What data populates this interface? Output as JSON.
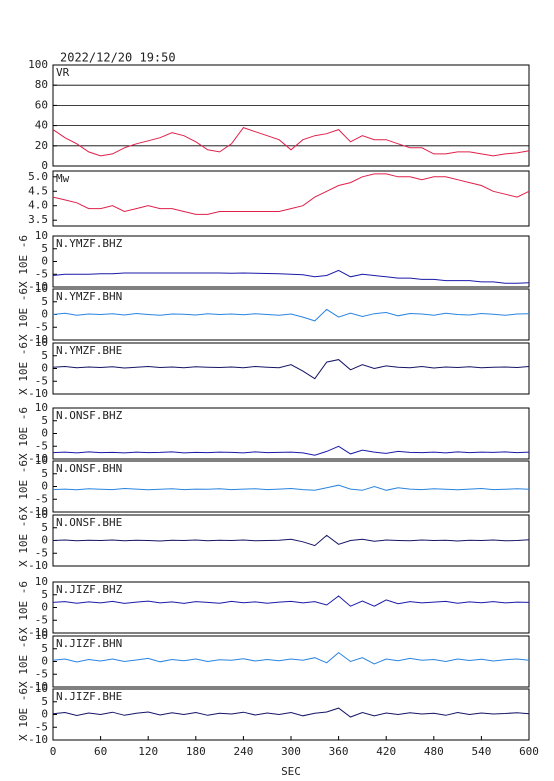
{
  "chart_data": {
    "type": "line",
    "title": "2022/12/20 19:50",
    "xlabel": "SEC",
    "ylabel": "X 10E -6",
    "x": [
      0,
      15,
      30,
      45,
      60,
      75,
      90,
      105,
      120,
      135,
      150,
      165,
      180,
      195,
      210,
      225,
      240,
      255,
      270,
      285,
      300,
      315,
      330,
      345,
      360,
      375,
      390,
      405,
      420,
      435,
      450,
      465,
      480,
      495,
      510,
      525,
      540,
      555,
      570,
      585,
      600
    ],
    "xlim": [
      0,
      600
    ],
    "xticks": [
      0,
      60,
      120,
      180,
      240,
      300,
      360,
      420,
      480,
      540,
      600
    ],
    "series": [
      {
        "name": "VR",
        "color": "#e0204a",
        "ylim": [
          0,
          100
        ],
        "yticks": [
          0,
          20,
          40,
          60,
          80,
          100
        ],
        "grid": true,
        "values": [
          36,
          28,
          22,
          14,
          10,
          12,
          18,
          22,
          25,
          28,
          33,
          30,
          24,
          16,
          14,
          22,
          38,
          34,
          30,
          26,
          16,
          26,
          30,
          32,
          36,
          24,
          30,
          26,
          26,
          22,
          18,
          18,
          12,
          12,
          14,
          14,
          12,
          10,
          12,
          13,
          15
        ]
      },
      {
        "name": "Mw",
        "color": "#e0204a",
        "ylim": [
          3.3,
          5.2
        ],
        "yticks": [
          3.5,
          {
            "value": 4,
            "label": "4.0"
          },
          4.5,
          {
            "value": 5,
            "label": "5.0"
          }
        ],
        "grid": false,
        "values": [
          4.3,
          4.2,
          4.1,
          3.9,
          3.9,
          4.0,
          3.8,
          3.9,
          4.0,
          3.9,
          3.9,
          3.8,
          3.7,
          3.7,
          3.8,
          3.8,
          3.8,
          3.8,
          3.8,
          3.8,
          3.9,
          4.0,
          4.3,
          4.5,
          4.7,
          4.8,
          5.0,
          5.1,
          5.1,
          5.0,
          5.0,
          4.9,
          5.0,
          5.0,
          4.9,
          4.8,
          4.7,
          4.5,
          4.4,
          4.3,
          4.5
        ]
      },
      {
        "name": "N.YMZF.BHZ",
        "color": "#1a1aaa",
        "ylim": [
          -10,
          10
        ],
        "yticks": [
          -10,
          -5,
          0,
          5,
          10
        ],
        "grid": false,
        "values": [
          -5.5,
          -5,
          -5,
          -5,
          -4.8,
          -4.8,
          -4.5,
          -4.5,
          -4.5,
          -4.5,
          -4.5,
          -4.5,
          -4.5,
          -4.5,
          -4.5,
          -4.6,
          -4.5,
          -4.6,
          -4.7,
          -4.8,
          -5,
          -5.2,
          -6,
          -5.5,
          -3.5,
          -6,
          -5,
          -5.5,
          -6,
          -6.5,
          -6.5,
          -7,
          -7,
          -7.5,
          -7.5,
          -7.5,
          -8,
          -8,
          -8.5,
          -8.5,
          -8.3
        ]
      },
      {
        "name": "N.YMZF.BHN",
        "color": "#2a84e0",
        "ylim": [
          -10,
          10
        ],
        "yticks": [
          -10,
          -5,
          0,
          5,
          10
        ],
        "grid": false,
        "values": [
          0,
          0.5,
          -0.3,
          0.2,
          0,
          0.3,
          -0.2,
          0.4,
          0,
          -0.3,
          0.2,
          0.1,
          -0.2,
          0.3,
          0,
          0.2,
          -0.1,
          0.3,
          0,
          -0.3,
          0.2,
          -1,
          -2.5,
          2,
          -1,
          0.5,
          -0.8,
          0.3,
          0.8,
          -0.5,
          0.4,
          0.2,
          -0.3,
          0.5,
          0,
          -0.2,
          0.4,
          0.1,
          -0.3,
          0.2,
          0.3
        ]
      },
      {
        "name": "N.YMZF.BHE",
        "color": "#141466",
        "ylim": [
          -10,
          10
        ],
        "yticks": [
          -10,
          -5,
          0,
          5,
          10
        ],
        "grid": false,
        "values": [
          0.5,
          0.8,
          0.3,
          0.6,
          0.4,
          0.7,
          0.2,
          0.5,
          0.8,
          0.4,
          0.6,
          0.3,
          0.7,
          0.5,
          0.4,
          0.6,
          0.3,
          0.8,
          0.5,
          0.3,
          1.5,
          -1,
          -4,
          2.5,
          3.5,
          -0.5,
          1.5,
          0,
          1,
          0.5,
          0.3,
          0.8,
          0.2,
          0.6,
          0.4,
          0.7,
          0.3,
          0.5,
          0.6,
          0.4,
          0.8
        ]
      },
      {
        "name": "N.ONSF.BHZ",
        "color": "#1a1aaa",
        "ylim": [
          -10,
          10
        ],
        "yticks": [
          -10,
          -5,
          0,
          5,
          10
        ],
        "grid": false,
        "values": [
          -7.5,
          -7.3,
          -7.6,
          -7.2,
          -7.5,
          -7.4,
          -7.6,
          -7.3,
          -7.5,
          -7.4,
          -7.2,
          -7.6,
          -7.4,
          -7.5,
          -7.3,
          -7.4,
          -7.6,
          -7.2,
          -7.5,
          -7.4,
          -7.3,
          -7.6,
          -8.5,
          -7,
          -5,
          -8,
          -6.5,
          -7.3,
          -7.8,
          -7,
          -7.4,
          -7.5,
          -7.3,
          -7.6,
          -7.2,
          -7.5,
          -7.3,
          -7.4,
          -7.2,
          -7.5,
          -7.3
        ]
      },
      {
        "name": "N.ONSF.BHN",
        "color": "#2a84e0",
        "ylim": [
          -10,
          10
        ],
        "yticks": [
          -10,
          -5,
          0,
          5,
          10
        ],
        "grid": false,
        "values": [
          -1.2,
          -1,
          -1.3,
          -0.9,
          -1.1,
          -1.2,
          -0.8,
          -1,
          -1.3,
          -1.1,
          -0.9,
          -1.2,
          -1,
          -1.1,
          -0.9,
          -1.2,
          -1,
          -0.9,
          -1.2,
          -1,
          -0.8,
          -1.2,
          -1.5,
          -0.5,
          0.5,
          -1,
          -1.5,
          0,
          -1.5,
          -0.5,
          -1,
          -1.2,
          -0.9,
          -1.1,
          -1.3,
          -1,
          -0.8,
          -1.2,
          -1.1,
          -0.9,
          -1.1
        ]
      },
      {
        "name": "N.ONSF.BHE",
        "color": "#141466",
        "ylim": [
          -10,
          10
        ],
        "yticks": [
          -10,
          -5,
          0,
          5,
          10
        ],
        "grid": false,
        "values": [
          0,
          0.2,
          -0.1,
          0.1,
          0,
          0.2,
          -0.1,
          0.1,
          0,
          -0.2,
          0.1,
          0,
          0.2,
          -0.1,
          0.1,
          0,
          0.2,
          -0.1,
          0,
          0.1,
          0.5,
          -0.5,
          -2,
          2,
          -1.5,
          0,
          0.5,
          -0.3,
          0.2,
          0,
          -0.1,
          0.2,
          0,
          0.1,
          -0.2,
          0.1,
          0,
          0.2,
          -0.1,
          0,
          0.3
        ]
      },
      {
        "name": "N.JIZF.BHZ",
        "color": "#1a1aaa",
        "ylim": [
          -10,
          10
        ],
        "yticks": [
          -10,
          -5,
          0,
          5,
          10
        ],
        "grid": false,
        "values": [
          2,
          2.3,
          1.7,
          2.2,
          1.8,
          2.4,
          1.6,
          2.1,
          2.5,
          1.8,
          2.2,
          1.6,
          2.3,
          2,
          1.7,
          2.4,
          1.9,
          2.2,
          1.7,
          2.1,
          2.4,
          1.8,
          2.3,
          1,
          4.5,
          0.5,
          2.5,
          0.5,
          3,
          1.5,
          2.3,
          1.8,
          2.1,
          2.4,
          1.7,
          2.2,
          1.9,
          2.3,
          1.8,
          2.1,
          2
        ]
      },
      {
        "name": "N.JIZF.BHN",
        "color": "#2a84e0",
        "ylim": [
          -10,
          10
        ],
        "yticks": [
          -10,
          -5,
          0,
          5,
          10
        ],
        "grid": false,
        "values": [
          0.5,
          1,
          -0.2,
          0.8,
          0.2,
          1,
          0,
          0.6,
          1.2,
          -0.1,
          0.8,
          0.3,
          1,
          0,
          0.7,
          0.5,
          1.1,
          0.2,
          0.8,
          0.3,
          1,
          0.5,
          1.5,
          -0.5,
          3.5,
          0,
          1.5,
          -1,
          1,
          0.3,
          1.2,
          0.5,
          0.8,
          0,
          1,
          0.4,
          0.9,
          0.2,
          0.7,
          1,
          0.5
        ]
      },
      {
        "name": "N.JIZF.BHE",
        "color": "#141466",
        "ylim": [
          -10,
          10
        ],
        "yticks": [
          -10,
          -5,
          0,
          5,
          10
        ],
        "grid": false,
        "values": [
          0.3,
          0.8,
          -0.4,
          0.6,
          0,
          0.9,
          -0.3,
          0.5,
          1,
          -0.2,
          0.7,
          0,
          0.8,
          -0.3,
          0.5,
          0.2,
          0.9,
          -0.2,
          0.6,
          0,
          0.8,
          -0.5,
          0.5,
          1,
          2.5,
          -1,
          0.8,
          -0.5,
          0.6,
          0,
          0.7,
          0.2,
          0.5,
          -0.3,
          0.8,
          0,
          0.6,
          0.2,
          0.4,
          0.7,
          0.3
        ]
      }
    ]
  }
}
